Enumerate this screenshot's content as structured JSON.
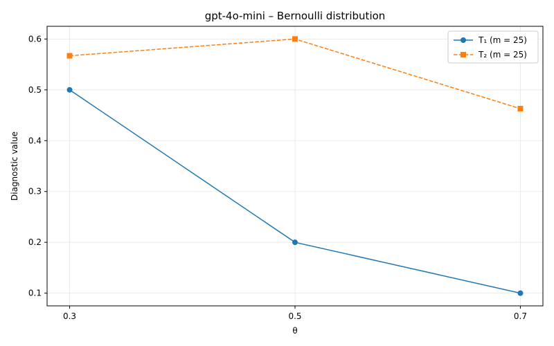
{
  "chart_data": {
    "type": "line",
    "title": "gpt-4o-mini – Bernoulli distribution",
    "xlabel": "θ",
    "ylabel": "Diagnostic value",
    "x": [
      0.3,
      0.5,
      0.7
    ],
    "x_tick_labels": [
      "0.3",
      "0.5",
      "0.7"
    ],
    "xlim": [
      0.28,
      0.72
    ],
    "ylim": [
      0.075,
      0.625
    ],
    "y_ticks": [
      0.1,
      0.2,
      0.3,
      0.4,
      0.5,
      0.6
    ],
    "y_tick_labels": [
      "0.1",
      "0.2",
      "0.3",
      "0.4",
      "0.5",
      "0.6"
    ],
    "grid": true,
    "legend_position": "top-right",
    "series": [
      {
        "name": "T₁ (m = 25)",
        "values": [
          0.5,
          0.2,
          0.1
        ],
        "color": "#1f77b4",
        "marker": "circle",
        "linestyle": "solid"
      },
      {
        "name": "T₂ (m = 25)",
        "values": [
          0.567,
          0.6,
          0.463
        ],
        "color": "#ff7f0e",
        "marker": "square",
        "linestyle": "dashed"
      }
    ]
  }
}
